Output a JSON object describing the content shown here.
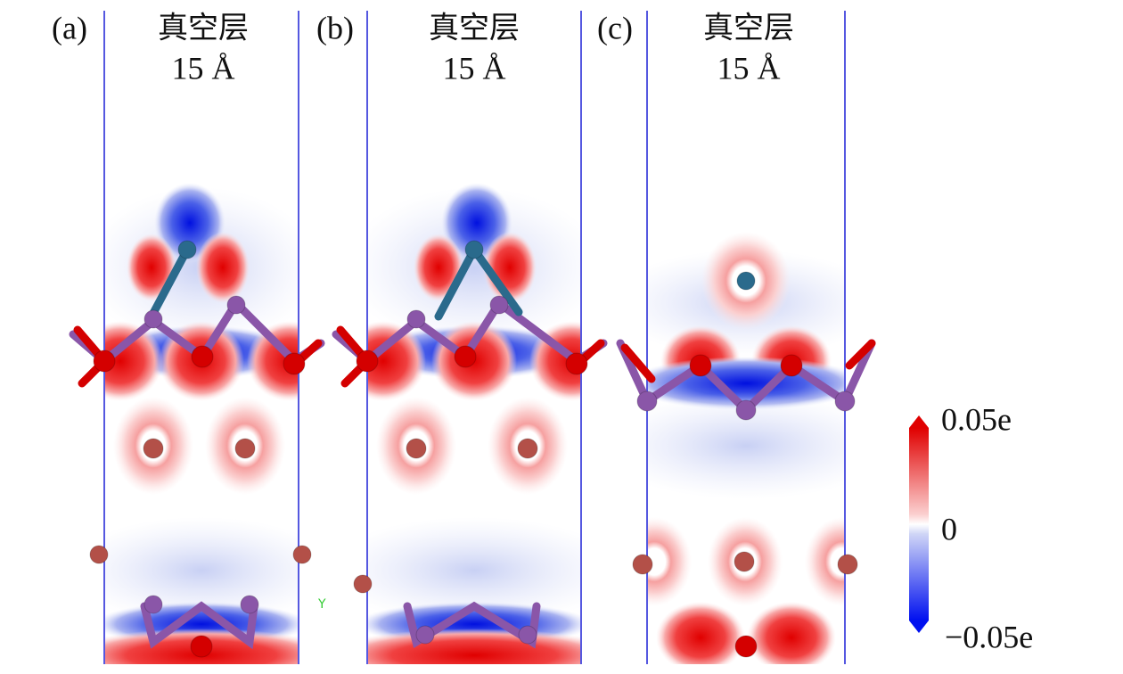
{
  "panels": [
    {
      "label": "(a)",
      "title": "真空层",
      "thickness": "15 Å",
      "axis_label": "Y"
    },
    {
      "label": "(b)",
      "title": "真空层",
      "thickness": "15 Å"
    },
    {
      "label": "(c)",
      "title": "真空层",
      "thickness": "15 Å"
    }
  ],
  "colorbar": {
    "max_label": "0.05e",
    "mid_label": "0",
    "min_label": "−0.05e"
  }
}
